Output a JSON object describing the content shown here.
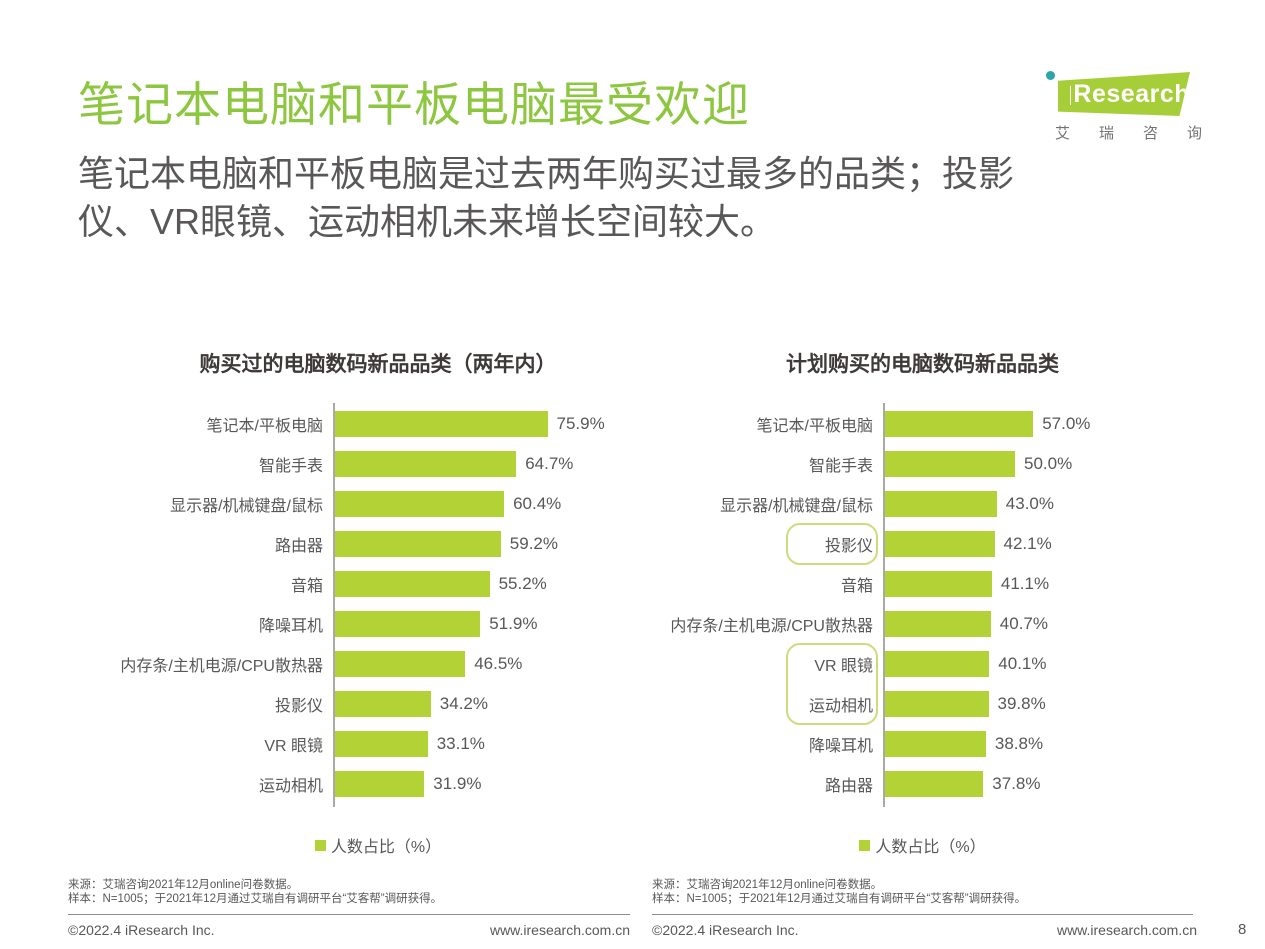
{
  "page": {
    "title": "笔记本电脑和平板电脑最受欢迎",
    "subtitle_line1": "笔记本电脑和平板电脑是过去两年购买过最多的品类；投影",
    "subtitle_line2": "仪、VR眼镜、运动相机未来增长空间较大。",
    "page_number": "8"
  },
  "logo": {
    "brand": "Research",
    "caption": "艾瑞咨询"
  },
  "colors": {
    "title_green": "#8DC63F",
    "bar_green": "#B2D235",
    "logo_green": "#A6CE39",
    "logo_dot_teal": "#2AA6A8",
    "text_dark": "#595757",
    "chart_title_dark": "#3E3A39",
    "axis_gray": "#A9A9A9",
    "highlight_border_green": "#C9DD7D"
  },
  "source": {
    "line1": "来源：艾瑞咨询2021年12月online问卷数据。",
    "line2": "样本：N=1005；于2021年12月通过艾瑞自有调研平台“艾客帮”调研获得。"
  },
  "footer": {
    "copyright": "©2022.4 iResearch Inc.",
    "website": "www.iresearch.com.cn"
  },
  "chart_data": [
    {
      "type": "bar",
      "orientation": "horizontal",
      "title": "购买过的电脑数码新品品类（两年内）",
      "legend": "人数占比（%）",
      "value_suffix": "%",
      "xlim": [
        0,
        80
      ],
      "categories": [
        "笔记本/平板电脑",
        "智能手表",
        "显示器/机械键盘/鼠标",
        "路由器",
        "音箱",
        "降噪耳机",
        "内存条/主机电源/CPU散热器",
        "投影仪",
        "VR 眼镜",
        "运动相机"
      ],
      "values": [
        75.9,
        64.7,
        60.4,
        59.2,
        55.2,
        51.9,
        46.5,
        34.2,
        33.1,
        31.9
      ],
      "highlight_boxes": []
    },
    {
      "type": "bar",
      "orientation": "horizontal",
      "title": "计划购买的电脑数码新品品类",
      "legend": "人数占比（%）",
      "value_suffix": "%",
      "xlim": [
        0,
        60
      ],
      "categories": [
        "笔记本/平板电脑",
        "智能手表",
        "显示器/机械键盘/鼠标",
        "投影仪",
        "音箱",
        "内存条/主机电源/CPU散热器",
        "VR 眼镜",
        "运动相机",
        "降噪耳机",
        "路由器"
      ],
      "values": [
        57.0,
        50.0,
        43.0,
        42.1,
        41.1,
        40.7,
        40.1,
        39.8,
        38.8,
        37.8
      ],
      "highlight_boxes": [
        {
          "categories": [
            "投影仪"
          ]
        },
        {
          "categories": [
            "VR 眼镜",
            "运动相机"
          ]
        }
      ]
    }
  ]
}
